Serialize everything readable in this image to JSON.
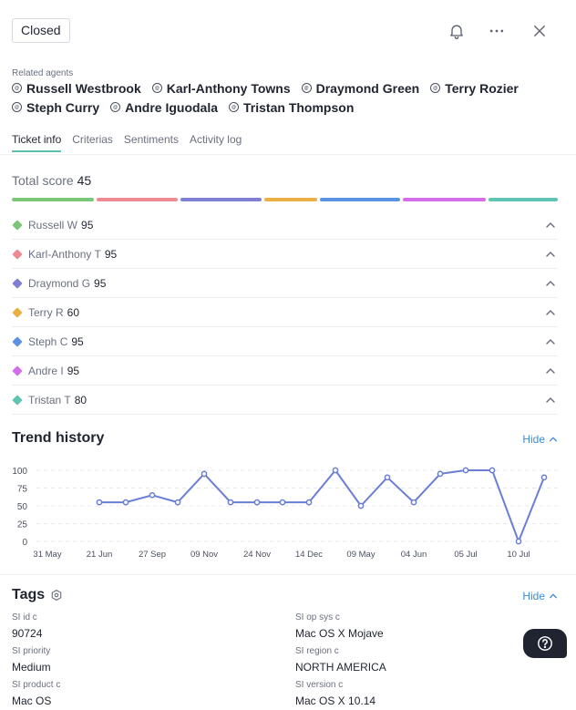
{
  "header": {
    "status": "Closed",
    "icons": [
      "bell-icon",
      "more-horizontal-icon",
      "close-icon"
    ]
  },
  "related_agents": {
    "label": "Related agents",
    "lines": [
      [
        "Russell Westbrook",
        "Karl-Anthony Towns",
        "Draymond Green",
        "Terry Rozier"
      ],
      [
        "Steph Curry",
        "Andre Iguodala",
        "Tristan Thompson"
      ]
    ]
  },
  "tabs": [
    {
      "label": "Ticket info",
      "active": true
    },
    {
      "label": "Criterias",
      "active": false
    },
    {
      "label": "Sentiments",
      "active": false
    },
    {
      "label": "Activity log",
      "active": false
    }
  ],
  "total_score": {
    "label": "Total score",
    "value": "45"
  },
  "scores": [
    {
      "name": "Russell W",
      "value": "95",
      "color": "#7ac77a"
    },
    {
      "name": "Karl-Anthony T",
      "value": "95",
      "color": "#ee8a94"
    },
    {
      "name": "Draymond G",
      "value": "95",
      "color": "#7f7fd6"
    },
    {
      "name": "Terry R",
      "value": "60",
      "color": "#eab043"
    },
    {
      "name": "Steph C",
      "value": "95",
      "color": "#5b93e3"
    },
    {
      "name": "Andre I",
      "value": "95",
      "color": "#d36ee8"
    },
    {
      "name": "Tristan T",
      "value": "80",
      "color": "#5ec5b4"
    }
  ],
  "trend": {
    "title": "Trend history",
    "hide_label": "Hide"
  },
  "chart_data": {
    "type": "line",
    "y_ticks": [
      "100",
      "75",
      "50",
      "25",
      "0"
    ],
    "ylim": [
      0,
      100
    ],
    "x_tick_labels": [
      "31 May",
      "21 Jun",
      "27 Sep",
      "09 Nov",
      "24 Nov",
      "14 Dec",
      "09 May",
      "04 Jun",
      "05 Jul",
      "10 Jul"
    ],
    "values": [
      55,
      55,
      65,
      55,
      95,
      55,
      55,
      55,
      55,
      100,
      50,
      90,
      55,
      95,
      100,
      100,
      0,
      90
    ],
    "line_color": "#6a7fd4"
  },
  "tags": {
    "title": "Tags",
    "hide_label": "Hide",
    "items": [
      {
        "label": "SI id c",
        "value": "90724"
      },
      {
        "label": "SI op sys c",
        "value": "Mac OS X Mojave"
      },
      {
        "label": "SI priority",
        "value": "Medium"
      },
      {
        "label": "SI region c",
        "value": "NORTH AMERICA"
      },
      {
        "label": "SI product c",
        "value": "Mac OS"
      },
      {
        "label": "SI version c",
        "value": "Mac OS X 10.14"
      }
    ]
  },
  "help": {
    "icon": "question-icon"
  }
}
